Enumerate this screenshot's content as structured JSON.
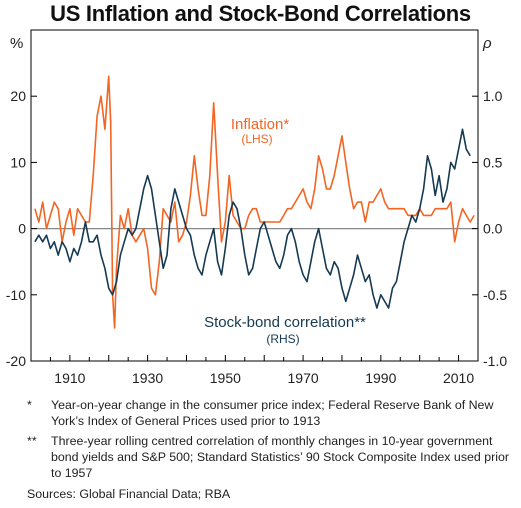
{
  "title": "US Inflation and Stock-Bond Correlations",
  "notes": [
    {
      "mark": "*",
      "text": "Year-on-year change in the consumer price index; Federal Reserve Bank of New York’s Index of General Prices used prior to 1913"
    },
    {
      "mark": "**",
      "text": "Three-year rolling centred correlation of monthly changes in 10-year government bond yields and S&P 500; Standard Statistics’ 90 Stock Composite Index used prior to 1957"
    }
  ],
  "sources": "Sources: Global Financial Data; RBA",
  "colors": {
    "inflation": "#f26522",
    "correlation": "#163a52",
    "zero_line": "#888888",
    "frame": "#000000"
  },
  "chart_data": {
    "type": "line",
    "title": "US Inflation and Stock-Bond Correlations",
    "left_axis": {
      "unit": "%",
      "range": [
        -20,
        30
      ],
      "ticks": [
        20,
        10,
        0,
        -10,
        -20
      ]
    },
    "right_axis": {
      "unit": "ρ",
      "range": [
        -1.0,
        1.5
      ],
      "ticks": [
        "1.0",
        "0.5",
        "0.0",
        "-0.5",
        "-1.0"
      ]
    },
    "x_axis": {
      "range": [
        1900,
        2015
      ],
      "ticks": [
        1910,
        1930,
        1950,
        1970,
        1990,
        2010
      ]
    },
    "grid": false,
    "series": [
      {
        "name": "Inflation*",
        "sublabel": "(LHS)",
        "axis": "left",
        "points": [
          [
            1901,
            3
          ],
          [
            1902,
            1
          ],
          [
            1903,
            4
          ],
          [
            1904,
            0
          ],
          [
            1905,
            2
          ],
          [
            1906,
            4
          ],
          [
            1907,
            3
          ],
          [
            1908,
            -2
          ],
          [
            1909,
            1
          ],
          [
            1910,
            3
          ],
          [
            1911,
            -1
          ],
          [
            1912,
            3
          ],
          [
            1913,
            2
          ],
          [
            1914,
            1
          ],
          [
            1915,
            1
          ],
          [
            1916,
            8
          ],
          [
            1917,
            17
          ],
          [
            1918,
            20
          ],
          [
            1919,
            15
          ],
          [
            1920,
            23
          ],
          [
            1920.5,
            16
          ],
          [
            1921,
            -10
          ],
          [
            1921.5,
            -15
          ],
          [
            1922,
            -6
          ],
          [
            1923,
            2
          ],
          [
            1924,
            0
          ],
          [
            1925,
            3
          ],
          [
            1926,
            -1
          ],
          [
            1927,
            -2
          ],
          [
            1928,
            -1
          ],
          [
            1929,
            0
          ],
          [
            1930,
            -3
          ],
          [
            1931,
            -9
          ],
          [
            1932,
            -10
          ],
          [
            1933,
            -5
          ],
          [
            1934,
            3
          ],
          [
            1935,
            2
          ],
          [
            1936,
            1
          ],
          [
            1937,
            4
          ],
          [
            1938,
            -2
          ],
          [
            1939,
            -1
          ],
          [
            1940,
            1
          ],
          [
            1941,
            5
          ],
          [
            1942,
            11
          ],
          [
            1943,
            6
          ],
          [
            1944,
            2
          ],
          [
            1945,
            2
          ],
          [
            1946,
            8
          ],
          [
            1947,
            19
          ],
          [
            1948,
            8
          ],
          [
            1949,
            -2
          ],
          [
            1950,
            1
          ],
          [
            1951,
            8
          ],
          [
            1952,
            2
          ],
          [
            1953,
            1
          ],
          [
            1954,
            0
          ],
          [
            1955,
            0
          ],
          [
            1956,
            2
          ],
          [
            1957,
            3
          ],
          [
            1958,
            3
          ],
          [
            1959,
            1
          ],
          [
            1960,
            1
          ],
          [
            1961,
            1
          ],
          [
            1962,
            1
          ],
          [
            1963,
            1
          ],
          [
            1964,
            1
          ],
          [
            1965,
            2
          ],
          [
            1966,
            3
          ],
          [
            1967,
            3
          ],
          [
            1968,
            4
          ],
          [
            1969,
            5
          ],
          [
            1970,
            6
          ],
          [
            1971,
            4
          ],
          [
            1972,
            3
          ],
          [
            1973,
            6
          ],
          [
            1974,
            11
          ],
          [
            1975,
            9
          ],
          [
            1976,
            6
          ],
          [
            1977,
            6
          ],
          [
            1978,
            8
          ],
          [
            1979,
            11
          ],
          [
            1980,
            14
          ],
          [
            1981,
            10
          ],
          [
            1982,
            6
          ],
          [
            1983,
            3
          ],
          [
            1984,
            4
          ],
          [
            1985,
            4
          ],
          [
            1986,
            1
          ],
          [
            1987,
            4
          ],
          [
            1988,
            4
          ],
          [
            1989,
            5
          ],
          [
            1990,
            6
          ],
          [
            1991,
            4
          ],
          [
            1992,
            3
          ],
          [
            1993,
            3
          ],
          [
            1994,
            3
          ],
          [
            1995,
            3
          ],
          [
            1996,
            3
          ],
          [
            1997,
            2
          ],
          [
            1998,
            2
          ],
          [
            1999,
            2
          ],
          [
            2000,
            3
          ],
          [
            2001,
            2
          ],
          [
            2002,
            2
          ],
          [
            2003,
            2
          ],
          [
            2004,
            3
          ],
          [
            2005,
            3
          ],
          [
            2006,
            3
          ],
          [
            2007,
            3
          ],
          [
            2008,
            4
          ],
          [
            2009,
            -2
          ],
          [
            2010,
            1
          ],
          [
            2011,
            3
          ],
          [
            2012,
            2
          ],
          [
            2013,
            1
          ],
          [
            2014,
            2
          ]
        ]
      },
      {
        "name": "Stock-bond correlation**",
        "sublabel": "(RHS)",
        "axis": "right",
        "points": [
          [
            1901,
            -0.1
          ],
          [
            1902,
            -0.05
          ],
          [
            1903,
            -0.1
          ],
          [
            1904,
            -0.05
          ],
          [
            1905,
            -0.15
          ],
          [
            1906,
            -0.1
          ],
          [
            1907,
            -0.2
          ],
          [
            1908,
            -0.1
          ],
          [
            1909,
            -0.15
          ],
          [
            1910,
            -0.25
          ],
          [
            1911,
            -0.15
          ],
          [
            1912,
            -0.2
          ],
          [
            1913,
            -0.1
          ],
          [
            1914,
            0.05
          ],
          [
            1915,
            -0.1
          ],
          [
            1916,
            -0.1
          ],
          [
            1917,
            -0.05
          ],
          [
            1918,
            -0.2
          ],
          [
            1919,
            -0.3
          ],
          [
            1920,
            -0.45
          ],
          [
            1921,
            -0.5
          ],
          [
            1922,
            -0.4
          ],
          [
            1923,
            -0.2
          ],
          [
            1924,
            -0.1
          ],
          [
            1925,
            0.0
          ],
          [
            1926,
            -0.05
          ],
          [
            1927,
            0.0
          ],
          [
            1928,
            0.15
          ],
          [
            1929,
            0.3
          ],
          [
            1930,
            0.4
          ],
          [
            1931,
            0.3
          ],
          [
            1932,
            0.1
          ],
          [
            1933,
            -0.1
          ],
          [
            1934,
            -0.3
          ],
          [
            1935,
            -0.2
          ],
          [
            1936,
            0.15
          ],
          [
            1937,
            0.3
          ],
          [
            1938,
            0.2
          ],
          [
            1939,
            0.1
          ],
          [
            1940,
            0.0
          ],
          [
            1941,
            -0.05
          ],
          [
            1942,
            -0.2
          ],
          [
            1943,
            -0.3
          ],
          [
            1944,
            -0.35
          ],
          [
            1945,
            -0.2
          ],
          [
            1946,
            -0.1
          ],
          [
            1947,
            0.0
          ],
          [
            1948,
            -0.25
          ],
          [
            1949,
            -0.35
          ],
          [
            1950,
            -0.15
          ],
          [
            1951,
            0.1
          ],
          [
            1952,
            0.2
          ],
          [
            1953,
            0.15
          ],
          [
            1954,
            0.0
          ],
          [
            1955,
            -0.2
          ],
          [
            1956,
            -0.35
          ],
          [
            1957,
            -0.3
          ],
          [
            1958,
            -0.15
          ],
          [
            1959,
            0.0
          ],
          [
            1960,
            0.05
          ],
          [
            1961,
            -0.05
          ],
          [
            1962,
            -0.15
          ],
          [
            1963,
            -0.25
          ],
          [
            1964,
            -0.3
          ],
          [
            1965,
            -0.2
          ],
          [
            1966,
            -0.05
          ],
          [
            1967,
            0.0
          ],
          [
            1968,
            -0.1
          ],
          [
            1969,
            -0.25
          ],
          [
            1970,
            -0.35
          ],
          [
            1971,
            -0.4
          ],
          [
            1972,
            -0.25
          ],
          [
            1973,
            -0.1
          ],
          [
            1974,
            0.0
          ],
          [
            1975,
            -0.15
          ],
          [
            1976,
            -0.3
          ],
          [
            1977,
            -0.35
          ],
          [
            1978,
            -0.25
          ],
          [
            1979,
            -0.3
          ],
          [
            1980,
            -0.45
          ],
          [
            1981,
            -0.55
          ],
          [
            1982,
            -0.45
          ],
          [
            1983,
            -0.35
          ],
          [
            1984,
            -0.2
          ],
          [
            1985,
            -0.3
          ],
          [
            1986,
            -0.4
          ],
          [
            1987,
            -0.35
          ],
          [
            1988,
            -0.5
          ],
          [
            1989,
            -0.6
          ],
          [
            1990,
            -0.5
          ],
          [
            1991,
            -0.55
          ],
          [
            1992,
            -0.6
          ],
          [
            1993,
            -0.45
          ],
          [
            1994,
            -0.4
          ],
          [
            1995,
            -0.25
          ],
          [
            1996,
            -0.1
          ],
          [
            1997,
            0.0
          ],
          [
            1998,
            0.1
          ],
          [
            1999,
            0.05
          ],
          [
            2000,
            0.15
          ],
          [
            2001,
            0.3
          ],
          [
            2002,
            0.55
          ],
          [
            2003,
            0.45
          ],
          [
            2004,
            0.25
          ],
          [
            2005,
            0.4
          ],
          [
            2006,
            0.2
          ],
          [
            2007,
            0.3
          ],
          [
            2008,
            0.5
          ],
          [
            2009,
            0.45
          ],
          [
            2010,
            0.6
          ],
          [
            2011,
            0.75
          ],
          [
            2012,
            0.6
          ],
          [
            2013,
            0.55
          ]
        ]
      }
    ]
  }
}
